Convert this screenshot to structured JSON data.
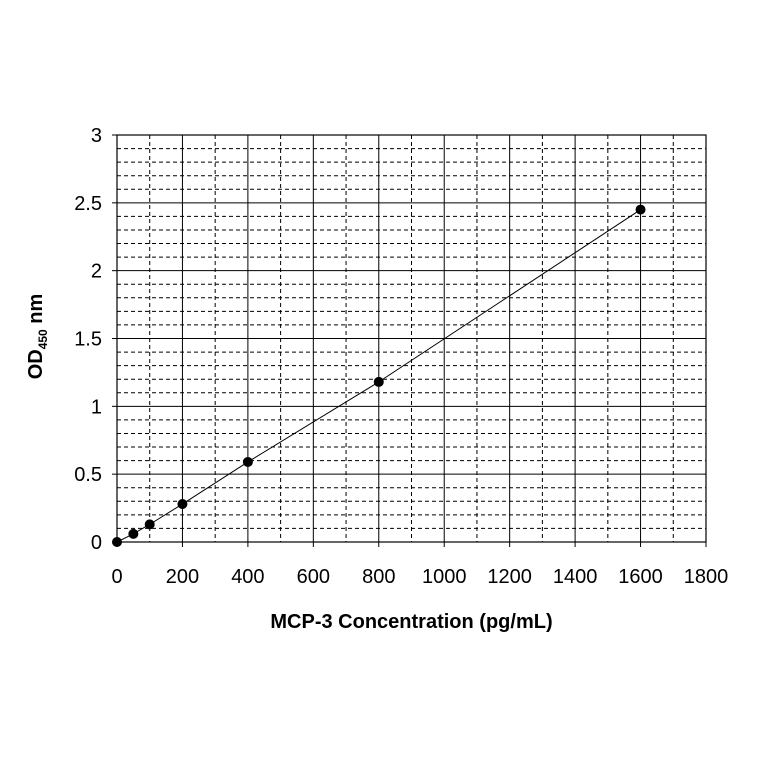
{
  "chart_data": {
    "type": "scatter",
    "title": "",
    "xlabel": "MCP-3 Concentration (pg/mL)",
    "ylabel": {
      "main": "OD",
      "subscript": "450",
      "suffix": " nm"
    },
    "xlim": [
      0,
      1800
    ],
    "ylim": [
      0,
      3
    ],
    "x_ticks": [
      0,
      200,
      400,
      600,
      800,
      1000,
      1200,
      1400,
      1600,
      1800
    ],
    "y_ticks": [
      0,
      0.5,
      1,
      1.5,
      2,
      2.5,
      3
    ],
    "x_tick_labels": [
      "0",
      "200",
      "400",
      "600",
      "800",
      "1000",
      "1200",
      "1400",
      "1600",
      "1800"
    ],
    "y_tick_labels": [
      "0",
      "0.5",
      "1",
      "1.5",
      "2",
      "2.5",
      "3"
    ],
    "x_minor_step": 100,
    "y_minor_step": 0.1,
    "grid": true,
    "grid_major_style": "solid",
    "grid_minor_style": "dashed",
    "connected_line": true,
    "marker_color": "#000000",
    "line_color": "#000000",
    "series": [
      {
        "x": [
          0,
          50,
          100,
          200,
          400,
          800,
          1600
        ],
        "y": [
          0.0,
          0.06,
          0.13,
          0.28,
          0.59,
          1.18,
          2.45
        ]
      }
    ]
  }
}
